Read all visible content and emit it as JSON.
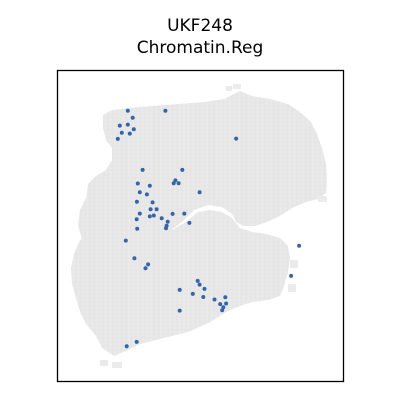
{
  "figure": {
    "title_line1": "UKF248",
    "title_line2": "Chromatin.Reg"
  },
  "chart_data": {
    "type": "scatter",
    "title": "UKF248\nChromatin.Reg",
    "xlabel": "",
    "ylabel": "",
    "grid": false,
    "axis_ticks": false,
    "xlim": [
      0,
      100
    ],
    "ylim": [
      0,
      100
    ],
    "colors": {
      "tissue": "#ebebeb",
      "highlight": "#3565a8",
      "frame": "#000000"
    },
    "series": [
      {
        "points": [
          [
            24.5,
            87.2
          ],
          [
            37.7,
            87.2
          ],
          [
            26.2,
            84.9
          ],
          [
            21.7,
            82.4
          ],
          [
            24.5,
            82.7
          ],
          [
            26.6,
            81.2
          ],
          [
            22.4,
            80.1
          ],
          [
            25.2,
            79.8
          ],
          [
            21.0,
            78.1
          ],
          [
            62.5,
            78.2
          ],
          [
            29.7,
            68.1
          ],
          [
            43.6,
            68.1
          ],
          [
            41.2,
            64.7
          ],
          [
            28.0,
            63.7
          ],
          [
            32.2,
            63.0
          ],
          [
            40.6,
            63.8
          ],
          [
            42.3,
            63.8
          ],
          [
            28.7,
            60.9
          ],
          [
            31.2,
            60.2
          ],
          [
            49.7,
            60.9
          ],
          [
            27.7,
            57.8
          ],
          [
            33.2,
            57.6
          ],
          [
            32.5,
            55.4
          ],
          [
            34.6,
            55.4
          ],
          [
            28.7,
            54.0
          ],
          [
            32.2,
            53.1
          ],
          [
            33.6,
            53.4
          ],
          [
            36.4,
            52.5
          ],
          [
            40.2,
            53.9
          ],
          [
            44.3,
            54.0
          ],
          [
            27.6,
            52.2
          ],
          [
            38.5,
            51.4
          ],
          [
            46.1,
            51.0
          ],
          [
            38.1,
            50.1
          ],
          [
            27.8,
            49.1
          ],
          [
            37.9,
            49.3
          ],
          [
            23.8,
            45.3
          ],
          [
            84.6,
            43.6
          ],
          [
            26.8,
            39.6
          ],
          [
            31.6,
            37.6
          ],
          [
            30.7,
            36.4
          ],
          [
            81.8,
            33.9
          ],
          [
            49.0,
            32.3
          ],
          [
            49.7,
            31.1
          ],
          [
            42.7,
            29.4
          ],
          [
            51.4,
            29.7
          ],
          [
            47.3,
            28.1
          ],
          [
            51.0,
            27.1
          ],
          [
            58.7,
            27.0
          ],
          [
            54.9,
            26.3
          ],
          [
            59.0,
            25.0
          ],
          [
            56.9,
            24.8
          ],
          [
            58.0,
            23.8
          ],
          [
            57.6,
            22.8
          ],
          [
            42.7,
            22.7
          ],
          [
            27.6,
            12.6
          ],
          [
            24.1,
            11.2
          ]
        ]
      }
    ]
  }
}
